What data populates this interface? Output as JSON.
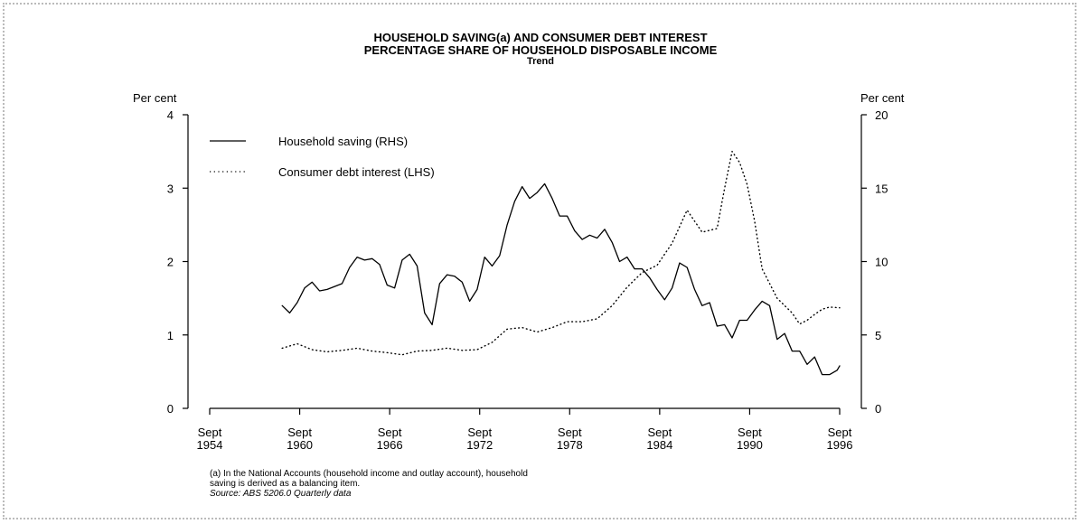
{
  "chart_data": {
    "type": "line",
    "title": "HOUSEHOLD SAVING(a) AND CONSUMER DEBT INTEREST",
    "subtitle": "PERCENTAGE SHARE OF HOUSEHOLD DISPOSABLE INCOME",
    "subtitle2": "Trend",
    "ylabel_left": "Per cent",
    "ylabel_right": "Per cent",
    "ylim_left": [
      0,
      4
    ],
    "ylim_right": [
      0,
      20
    ],
    "yticks_left": [
      "0",
      "1",
      "2",
      "3",
      "4"
    ],
    "yticks_right": [
      "0",
      "5",
      "10",
      "15",
      "20"
    ],
    "xlim": [
      1954.67,
      1996.67
    ],
    "xticks": [
      {
        "x": 1954.67,
        "line1": "Sept",
        "line2": "1954"
      },
      {
        "x": 1960.67,
        "line1": "Sept",
        "line2": "1960"
      },
      {
        "x": 1966.67,
        "line1": "Sept",
        "line2": "1966"
      },
      {
        "x": 1972.67,
        "line1": "Sept",
        "line2": "1972"
      },
      {
        "x": 1978.67,
        "line1": "Sept",
        "line2": "1978"
      },
      {
        "x": 1984.67,
        "line1": "Sept",
        "line2": "1984"
      },
      {
        "x": 1990.67,
        "line1": "Sept",
        "line2": "1990"
      },
      {
        "x": 1996.67,
        "line1": "Sept",
        "line2": "1996"
      }
    ],
    "legend": "top-left",
    "series": [
      {
        "name": "Household saving (RHS)",
        "axis": "right",
        "style": "solid",
        "points": [
          [
            1959.5,
            7.0
          ],
          [
            1960.0,
            6.5
          ],
          [
            1960.5,
            7.2
          ],
          [
            1961.0,
            8.2
          ],
          [
            1961.5,
            8.6
          ],
          [
            1962.0,
            8.0
          ],
          [
            1962.5,
            8.1
          ],
          [
            1963.0,
            8.3
          ],
          [
            1963.5,
            8.5
          ],
          [
            1964.0,
            9.6
          ],
          [
            1964.5,
            10.3
          ],
          [
            1965.0,
            10.1
          ],
          [
            1965.5,
            10.2
          ],
          [
            1966.0,
            9.8
          ],
          [
            1966.5,
            8.4
          ],
          [
            1967.0,
            8.2
          ],
          [
            1967.5,
            10.1
          ],
          [
            1968.0,
            10.5
          ],
          [
            1968.5,
            9.7
          ],
          [
            1969.0,
            6.5
          ],
          [
            1969.5,
            5.7
          ],
          [
            1970.0,
            8.5
          ],
          [
            1970.5,
            9.1
          ],
          [
            1971.0,
            9.0
          ],
          [
            1971.5,
            8.6
          ],
          [
            1972.0,
            7.3
          ],
          [
            1972.5,
            8.1
          ],
          [
            1973.0,
            10.3
          ],
          [
            1973.5,
            9.7
          ],
          [
            1974.0,
            10.4
          ],
          [
            1974.5,
            12.5
          ],
          [
            1975.0,
            14.1
          ],
          [
            1975.5,
            15.1
          ],
          [
            1976.0,
            14.3
          ],
          [
            1976.5,
            14.7
          ],
          [
            1977.0,
            15.3
          ],
          [
            1977.5,
            14.3
          ],
          [
            1978.0,
            13.1
          ],
          [
            1978.5,
            13.1
          ],
          [
            1979.0,
            12.1
          ],
          [
            1979.5,
            11.5
          ],
          [
            1980.0,
            11.8
          ],
          [
            1980.5,
            11.6
          ],
          [
            1981.0,
            12.2
          ],
          [
            1981.5,
            11.3
          ],
          [
            1982.0,
            10.0
          ],
          [
            1982.5,
            10.3
          ],
          [
            1983.0,
            9.5
          ],
          [
            1983.5,
            9.5
          ],
          [
            1984.0,
            8.9
          ],
          [
            1984.5,
            8.1
          ],
          [
            1985.0,
            7.4
          ],
          [
            1985.5,
            8.2
          ],
          [
            1986.0,
            9.9
          ],
          [
            1986.5,
            9.6
          ],
          [
            1987.0,
            8.1
          ],
          [
            1987.5,
            7.0
          ],
          [
            1988.0,
            7.2
          ],
          [
            1988.5,
            5.6
          ],
          [
            1989.0,
            5.7
          ],
          [
            1989.5,
            4.8
          ],
          [
            1990.0,
            6.0
          ],
          [
            1990.5,
            6.0
          ],
          [
            1991.0,
            6.7
          ],
          [
            1991.5,
            7.3
          ],
          [
            1992.0,
            7.0
          ],
          [
            1992.5,
            4.7
          ],
          [
            1993.0,
            5.1
          ],
          [
            1993.5,
            3.9
          ],
          [
            1994.0,
            3.9
          ],
          [
            1994.5,
            3.0
          ],
          [
            1995.0,
            3.5
          ],
          [
            1995.5,
            2.3
          ],
          [
            1996.0,
            2.3
          ],
          [
            1996.5,
            2.6
          ],
          [
            1996.67,
            2.9
          ]
        ]
      },
      {
        "name": "Consumer debt interest (LHS)",
        "axis": "left",
        "style": "dotted",
        "points": [
          [
            1959.5,
            0.82
          ],
          [
            1960.5,
            0.88
          ],
          [
            1961.5,
            0.8
          ],
          [
            1962.5,
            0.77
          ],
          [
            1963.5,
            0.79
          ],
          [
            1964.5,
            0.82
          ],
          [
            1965.5,
            0.78
          ],
          [
            1966.5,
            0.76
          ],
          [
            1967.5,
            0.73
          ],
          [
            1968.5,
            0.78
          ],
          [
            1969.5,
            0.79
          ],
          [
            1970.5,
            0.82
          ],
          [
            1971.5,
            0.79
          ],
          [
            1972.5,
            0.8
          ],
          [
            1973.5,
            0.9
          ],
          [
            1974.5,
            1.08
          ],
          [
            1975.5,
            1.1
          ],
          [
            1976.5,
            1.04
          ],
          [
            1977.5,
            1.1
          ],
          [
            1978.5,
            1.18
          ],
          [
            1979.5,
            1.18
          ],
          [
            1980.5,
            1.22
          ],
          [
            1981.5,
            1.4
          ],
          [
            1982.5,
            1.65
          ],
          [
            1983.5,
            1.85
          ],
          [
            1984.5,
            1.95
          ],
          [
            1985.5,
            2.25
          ],
          [
            1986.5,
            2.7
          ],
          [
            1987.5,
            2.4
          ],
          [
            1988.5,
            2.45
          ],
          [
            1989.0,
            3.0
          ],
          [
            1989.5,
            3.5
          ],
          [
            1990.0,
            3.35
          ],
          [
            1990.5,
            3.05
          ],
          [
            1991.0,
            2.55
          ],
          [
            1991.5,
            1.9
          ],
          [
            1992.5,
            1.5
          ],
          [
            1993.5,
            1.3
          ],
          [
            1994.0,
            1.15
          ],
          [
            1994.5,
            1.2
          ],
          [
            1995.0,
            1.28
          ],
          [
            1995.5,
            1.35
          ],
          [
            1996.0,
            1.38
          ],
          [
            1996.67,
            1.37
          ]
        ]
      }
    ]
  },
  "footnote": {
    "line1": "(a) In the National Accounts (household income and outlay account), household",
    "line2": "saving is derived as a balancing item.",
    "source": "Source: ABS 5206.0 Quarterly data"
  }
}
